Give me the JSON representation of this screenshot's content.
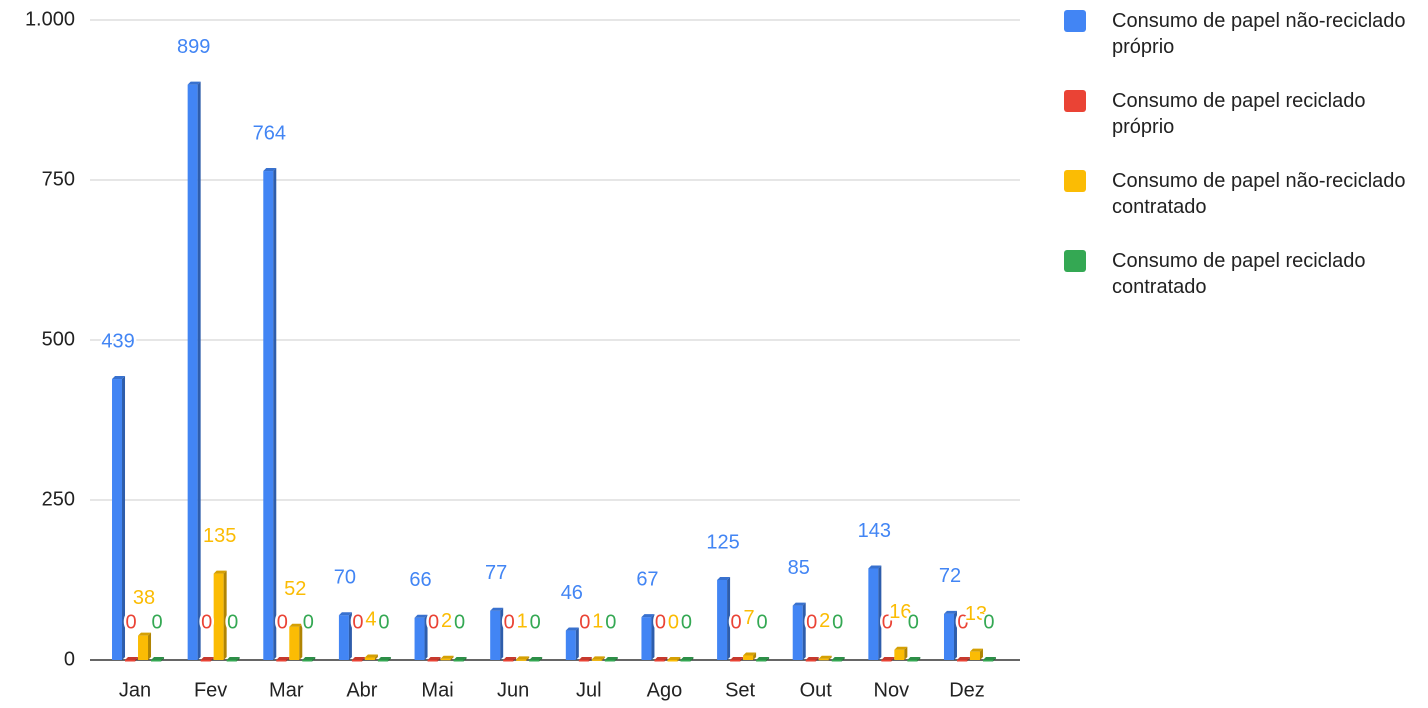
{
  "chart_data": {
    "type": "bar",
    "categories": [
      "Jan",
      "Fev",
      "Mar",
      "Abr",
      "Mai",
      "Jun",
      "Jul",
      "Ago",
      "Set",
      "Out",
      "Nov",
      "Dez"
    ],
    "series": [
      {
        "name": "Consumo de papel não-reciclado próprio",
        "color": "#4285f4",
        "values": [
          439,
          899,
          764,
          70,
          66,
          77,
          46,
          67,
          125,
          85,
          143,
          72
        ]
      },
      {
        "name": "Consumo de papel reciclado próprio",
        "color": "#ea4335",
        "values": [
          0,
          0,
          0,
          0,
          0,
          0,
          0,
          0,
          0,
          0,
          0,
          0
        ]
      },
      {
        "name": "Consumo de papel não-reciclado contratado",
        "color": "#fbbc04",
        "values": [
          38,
          135,
          52,
          4,
          2,
          1,
          1,
          0,
          7,
          2,
          16,
          13
        ]
      },
      {
        "name": "Consumo de papel reciclado contratado",
        "color": "#34a853",
        "values": [
          0,
          0,
          0,
          0,
          0,
          0,
          0,
          0,
          0,
          0,
          0,
          0
        ]
      }
    ],
    "ylim": [
      0,
      1000
    ],
    "yticks": [
      0,
      250,
      500,
      750,
      {
        "value": 1000,
        "label": "1.000"
      }
    ],
    "grid": true,
    "legend": "right"
  }
}
